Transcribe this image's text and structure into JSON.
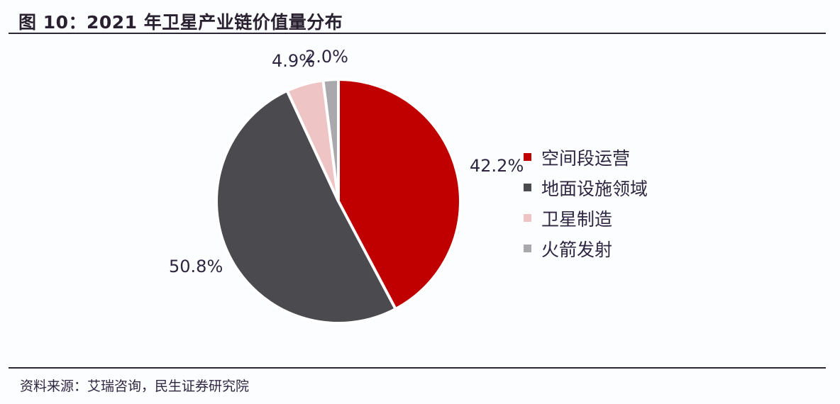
{
  "title": "图 10：2021 年卫星产业链价值量分布",
  "source": "资料来源：艾瑞咨询，民生证券研究院",
  "colors": {
    "space_ops": "#c00000",
    "ground": "#4b4a4f",
    "satellite_mfg": "#efc4c4",
    "launch": "#a8a8ad"
  },
  "labels": {
    "space_ops": "42.2%",
    "ground": "50.8%",
    "satellite_mfg": "4.9%",
    "launch": "2.0%"
  },
  "legend": [
    {
      "label": "空间段运营",
      "color": "#c00000"
    },
    {
      "label": "地面设施领域",
      "color": "#4b4a4f"
    },
    {
      "label": "卫星制造",
      "color": "#efc4c4"
    },
    {
      "label": "火箭发射",
      "color": "#a8a8ad"
    }
  ],
  "chart_data": {
    "type": "pie",
    "title": "2021 年卫星产业链价值量分布",
    "categories": [
      "空间段运营",
      "地面设施领域",
      "卫星制造",
      "火箭发射"
    ],
    "values": [
      42.2,
      50.8,
      4.9,
      2.0
    ],
    "unit": "%",
    "colors": [
      "#c00000",
      "#4b4a4f",
      "#efc4c4",
      "#a8a8ad"
    ],
    "start_angle": "12 o'clock",
    "direction": "clockwise",
    "legend_position": "right",
    "data_labels": [
      "42.2%",
      "50.8%",
      "4.9%",
      "2.0%"
    ]
  }
}
